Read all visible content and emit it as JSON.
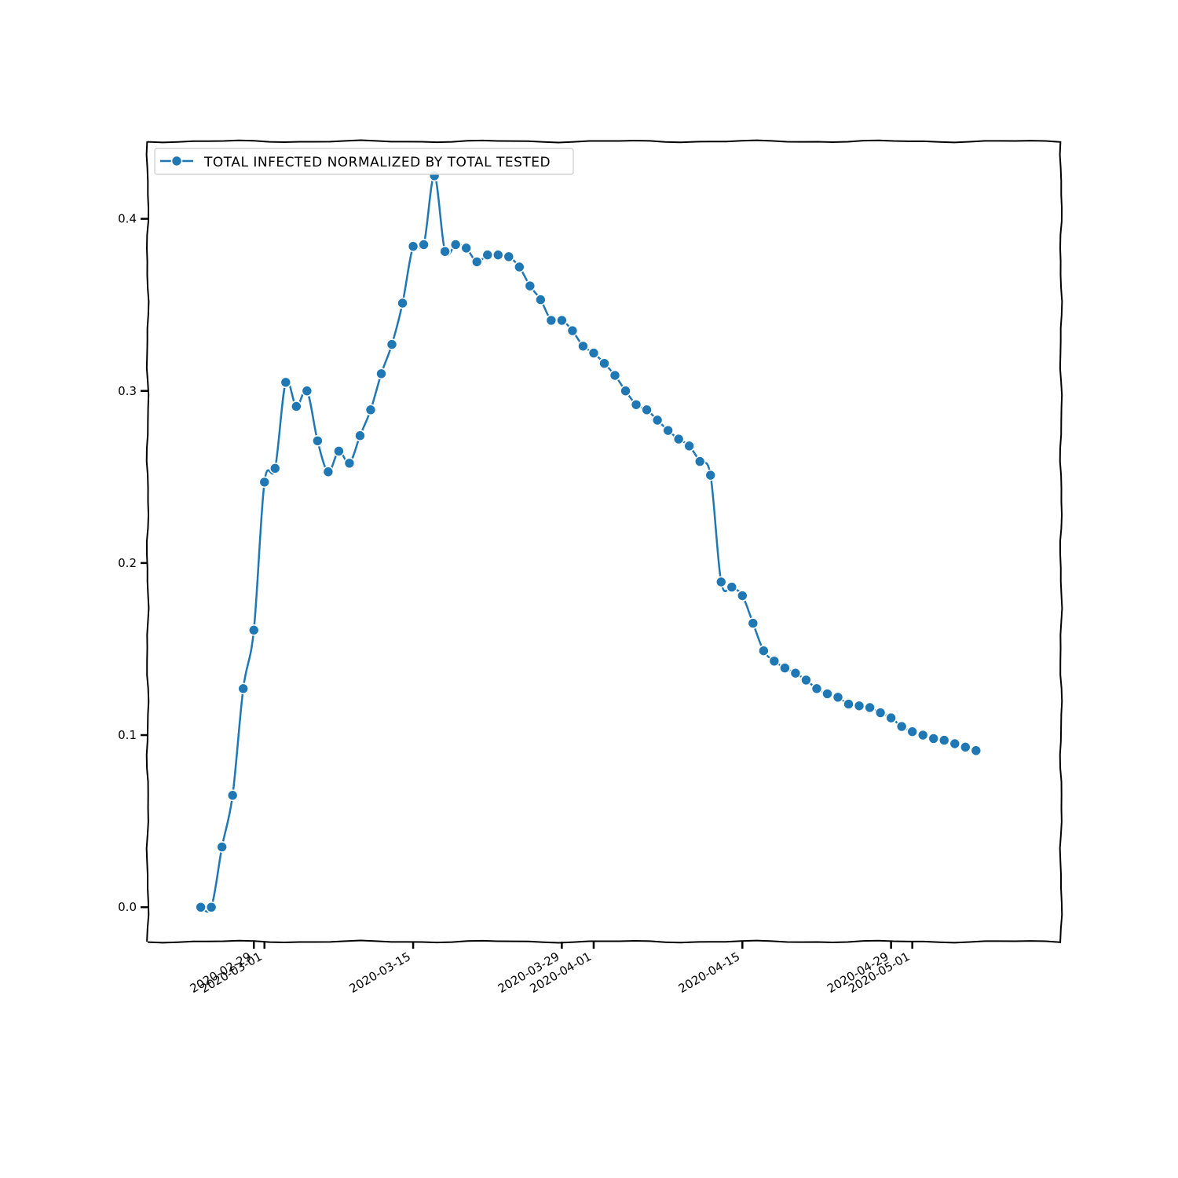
{
  "chart_data": {
    "type": "line",
    "title": "",
    "xlabel": "",
    "ylabel": "",
    "x_start": "2020-02-24",
    "xlim": [
      "2020-02-19",
      "2020-05-15"
    ],
    "ylim": [
      -0.02,
      0.445
    ],
    "grid": false,
    "legend_position": "top-left",
    "marker": "circle",
    "color": "#1f77b4",
    "x_ticks": [
      "2020-02-29",
      "2020-03-01",
      "2020-03-15",
      "2020-03-29",
      "2020-04-01",
      "2020-04-15",
      "2020-04-29",
      "2020-05-01"
    ],
    "x_tick_labels": [
      "2020-02-29",
      "2020-03-01",
      "2020-03-15",
      "2020-03-29",
      "2020-04-01",
      "2020-04-15",
      "2020-04-29",
      "2020-05-01"
    ],
    "y_ticks": [
      0.0,
      0.1,
      0.2,
      0.3,
      0.4
    ],
    "y_tick_labels": [
      "0.0",
      "0.1",
      "0.2",
      "0.3",
      "0.4"
    ],
    "series": [
      {
        "name": "TOTAL INFECTED NORMALIZED BY TOTAL TESTED",
        "values": [
          0.0,
          0.0,
          0.035,
          0.065,
          0.127,
          0.161,
          0.247,
          0.255,
          0.305,
          0.291,
          0.3,
          0.271,
          0.253,
          0.265,
          0.258,
          0.274,
          0.289,
          0.31,
          0.327,
          0.351,
          0.384,
          0.385,
          0.425,
          0.381,
          0.385,
          0.383,
          0.375,
          0.379,
          0.379,
          0.378,
          0.372,
          0.361,
          0.353,
          0.341,
          0.341,
          0.335,
          0.326,
          0.322,
          0.316,
          0.309,
          0.3,
          0.292,
          0.289,
          0.283,
          0.277,
          0.272,
          0.268,
          0.259,
          0.251,
          0.189,
          0.186,
          0.181,
          0.165,
          0.149,
          0.143,
          0.139,
          0.136,
          0.132,
          0.127,
          0.124,
          0.122,
          0.118,
          0.117,
          0.116,
          0.113,
          0.11,
          0.105,
          0.102,
          0.1,
          0.098,
          0.097,
          0.095,
          0.093,
          0.091
        ]
      }
    ]
  }
}
